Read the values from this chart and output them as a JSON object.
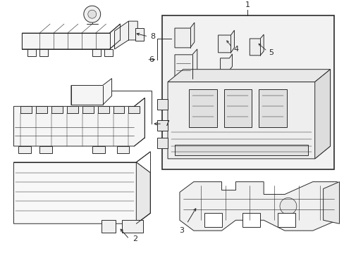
{
  "background_color": "#ffffff",
  "line_color": "#2a2a2a",
  "label_color": "#1a1a1a",
  "fig_width": 4.89,
  "fig_height": 3.6,
  "dpi": 100,
  "font_size": 8,
  "lw": 0.7
}
